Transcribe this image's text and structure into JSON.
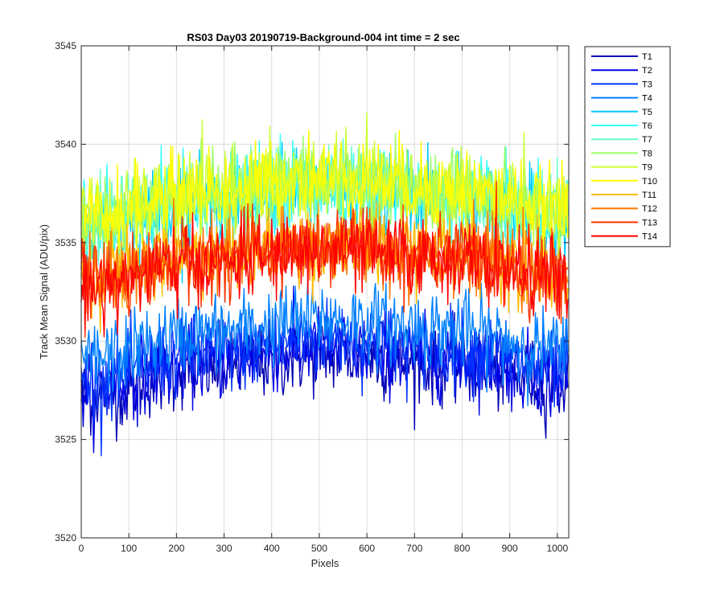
{
  "chart_data": {
    "type": "line",
    "title": "RS03 Day03 20190719-Background-004 int time = 2 sec",
    "xlabel": "Pixels",
    "ylabel": "Track Mean Signal (ADU/pix)",
    "xlim": [
      0,
      1024
    ],
    "ylim": [
      3520,
      3545
    ],
    "xticks": [
      0,
      100,
      200,
      300,
      400,
      500,
      600,
      700,
      800,
      900,
      1000
    ],
    "yticks": [
      3520,
      3525,
      3530,
      3535,
      3540,
      3545
    ],
    "grid": true,
    "legend_position": "outside-top-right",
    "series": [
      {
        "name": "T1",
        "color": "#0000b3",
        "mean_at_pixel": {
          "x": [
            0,
            256,
            512,
            768,
            1023
          ],
          "y": [
            3527.2,
            3528.6,
            3529.3,
            3528.8,
            3527.8
          ]
        },
        "noise_amplitude": 1.3
      },
      {
        "name": "T2",
        "color": "#0000e6",
        "mean_at_pixel": {
          "x": [
            0,
            256,
            512,
            768,
            1023
          ],
          "y": [
            3527.6,
            3529.0,
            3529.7,
            3529.2,
            3528.1
          ]
        },
        "noise_amplitude": 1.3
      },
      {
        "name": "T3",
        "color": "#0033ff",
        "mean_at_pixel": {
          "x": [
            0,
            256,
            512,
            768,
            1023
          ],
          "y": [
            3528.0,
            3529.4,
            3530.1,
            3529.6,
            3528.5
          ]
        },
        "noise_amplitude": 1.3
      },
      {
        "name": "T4",
        "color": "#0080ff",
        "mean_at_pixel": {
          "x": [
            0,
            256,
            512,
            768,
            1023
          ],
          "y": [
            3529.0,
            3530.4,
            3531.1,
            3530.6,
            3529.5
          ]
        },
        "noise_amplitude": 1.3
      },
      {
        "name": "T5",
        "color": "#00c8ff",
        "mean_at_pixel": {
          "x": [
            0,
            256,
            512,
            768,
            1023
          ],
          "y": [
            3535.6,
            3537.0,
            3537.8,
            3537.2,
            3536.0
          ]
        },
        "noise_amplitude": 1.4
      },
      {
        "name": "T6",
        "color": "#33ffff",
        "mean_at_pixel": {
          "x": [
            0,
            256,
            512,
            768,
            1023
          ],
          "y": [
            3535.8,
            3537.2,
            3538.0,
            3537.4,
            3536.2
          ]
        },
        "noise_amplitude": 1.4
      },
      {
        "name": "T7",
        "color": "#66ffcc",
        "mean_at_pixel": {
          "x": [
            0,
            256,
            512,
            768,
            1023
          ],
          "y": [
            3535.9,
            3537.3,
            3538.1,
            3537.5,
            3536.3
          ]
        },
        "noise_amplitude": 1.4
      },
      {
        "name": "T8",
        "color": "#99ff66",
        "mean_at_pixel": {
          "x": [
            0,
            256,
            512,
            768,
            1023
          ],
          "y": [
            3536.0,
            3537.4,
            3538.2,
            3537.6,
            3536.4
          ]
        },
        "noise_amplitude": 1.4
      },
      {
        "name": "T9",
        "color": "#ccff33",
        "mean_at_pixel": {
          "x": [
            0,
            256,
            512,
            768,
            1023
          ],
          "y": [
            3536.1,
            3537.5,
            3538.3,
            3537.7,
            3536.5
          ]
        },
        "noise_amplitude": 1.4
      },
      {
        "name": "T10",
        "color": "#ffff00",
        "mean_at_pixel": {
          "x": [
            0,
            256,
            512,
            768,
            1023
          ],
          "y": [
            3536.2,
            3537.6,
            3538.4,
            3537.8,
            3536.6
          ]
        },
        "noise_amplitude": 1.4
      },
      {
        "name": "T11",
        "color": "#ffbb00",
        "mean_at_pixel": {
          "x": [
            0,
            256,
            512,
            768,
            1023
          ],
          "y": [
            3533.2,
            3534.4,
            3535.0,
            3534.6,
            3533.6
          ]
        },
        "noise_amplitude": 1.3
      },
      {
        "name": "T12",
        "color": "#ff7700",
        "mean_at_pixel": {
          "x": [
            0,
            256,
            512,
            768,
            1023
          ],
          "y": [
            3533.0,
            3534.2,
            3534.8,
            3534.4,
            3533.4
          ]
        },
        "noise_amplitude": 1.3
      },
      {
        "name": "T13",
        "color": "#ff3300",
        "mean_at_pixel": {
          "x": [
            0,
            256,
            512,
            768,
            1023
          ],
          "y": [
            3532.9,
            3534.1,
            3534.7,
            3534.3,
            3533.3
          ]
        },
        "noise_amplitude": 1.3
      },
      {
        "name": "T14",
        "color": "#ff0000",
        "mean_at_pixel": {
          "x": [
            0,
            256,
            512,
            768,
            1023
          ],
          "y": [
            3532.8,
            3534.0,
            3534.6,
            3534.2,
            3533.2
          ]
        },
        "noise_amplitude": 1.3
      }
    ]
  }
}
